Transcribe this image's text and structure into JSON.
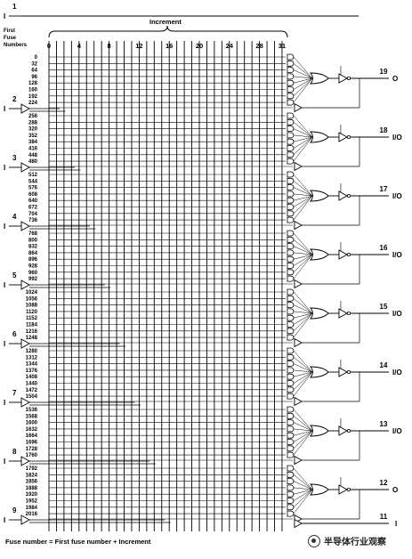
{
  "header": {
    "first_fuse": [
      "First",
      "Fuse",
      "Numbers"
    ],
    "increment": "Increment",
    "increment_ticks": [
      "0",
      "4",
      "8",
      "12",
      "16",
      "20",
      "24",
      "28",
      "31"
    ]
  },
  "inputs": [
    {
      "pin": "1",
      "side": "I"
    },
    {
      "pin": "2",
      "side": "I"
    },
    {
      "pin": "3",
      "side": "I"
    },
    {
      "pin": "4",
      "side": "I"
    },
    {
      "pin": "5",
      "side": "I"
    },
    {
      "pin": "6",
      "side": "I"
    },
    {
      "pin": "7",
      "side": "I"
    },
    {
      "pin": "8",
      "side": "I"
    },
    {
      "pin": "9",
      "side": "I"
    }
  ],
  "macrocells": [
    {
      "pin": "19",
      "label": "O",
      "fuses": [
        "0",
        "32",
        "64",
        "96",
        "128",
        "160",
        "192",
        "224"
      ]
    },
    {
      "pin": "18",
      "label": "I/O",
      "fuses": [
        "256",
        "288",
        "320",
        "352",
        "384",
        "416",
        "448",
        "480"
      ]
    },
    {
      "pin": "17",
      "label": "I/O",
      "fuses": [
        "512",
        "544",
        "576",
        "608",
        "640",
        "672",
        "704",
        "736"
      ]
    },
    {
      "pin": "16",
      "label": "I/O",
      "fuses": [
        "768",
        "800",
        "832",
        "864",
        "896",
        "928",
        "960",
        "992"
      ]
    },
    {
      "pin": "15",
      "label": "I/O",
      "fuses": [
        "1024",
        "1056",
        "1088",
        "1120",
        "1152",
        "1184",
        "1216",
        "1248"
      ]
    },
    {
      "pin": "14",
      "label": "I/O",
      "fuses": [
        "1280",
        "1312",
        "1344",
        "1376",
        "1408",
        "1440",
        "1472",
        "1504"
      ]
    },
    {
      "pin": "13",
      "label": "I/O",
      "fuses": [
        "1536",
        "1568",
        "1600",
        "1632",
        "1664",
        "1696",
        "1728",
        "1760"
      ]
    },
    {
      "pin": "12",
      "label": "O",
      "fuses": [
        "1792",
        "1824",
        "1856",
        "1888",
        "1920",
        "1952",
        "1984",
        "2016"
      ]
    }
  ],
  "bottom_input": {
    "pin": "11",
    "label": "I"
  },
  "footer": "Fuse number = First fuse number + Increment",
  "watermark": "半导体行业观察",
  "colors": {
    "line": "#000000",
    "background": "#ffffff"
  }
}
